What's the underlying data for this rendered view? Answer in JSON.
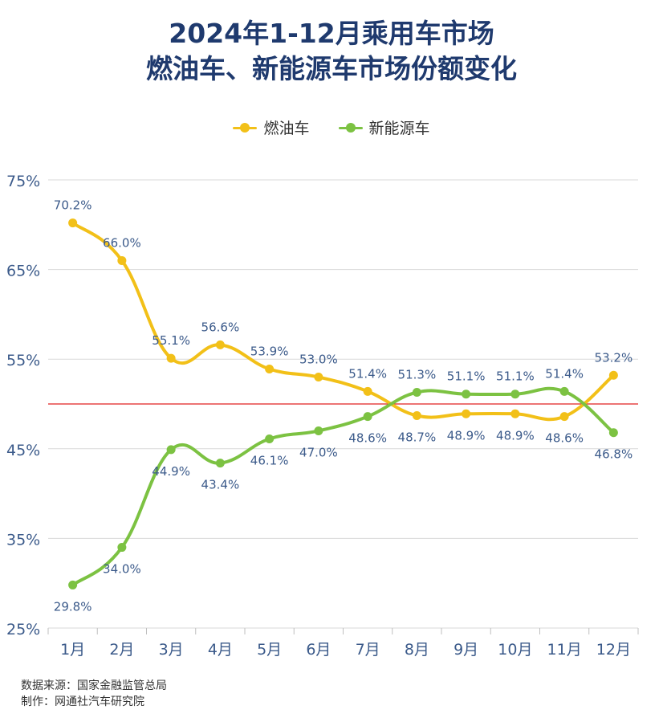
{
  "title_line1": "2024年1-12月乘用车市场",
  "title_line2": "燃油车、新能源车市场份额变化",
  "source_line1": "数据来源：国家金融监管总局",
  "source_line2": "制作：网通社汽车研究院",
  "colors": {
    "fuel": "#f2c018",
    "nev": "#7cc242",
    "reference_line": "#e02020",
    "grid": "#d9d9d9",
    "axis_text": "#3b5a8a",
    "data_label": "#3b5a8a",
    "title": "#1f3a6e"
  },
  "chart_data": {
    "type": "line",
    "title": "2024年1-12月乘用车市场 燃油车、新能源车市场份额变化",
    "categories": [
      "1月",
      "2月",
      "3月",
      "4月",
      "5月",
      "6月",
      "7月",
      "8月",
      "9月",
      "10月",
      "11月",
      "12月"
    ],
    "series": [
      {
        "name": "燃油车",
        "values": [
          70.2,
          66.0,
          55.1,
          56.6,
          53.9,
          53.0,
          51.4,
          48.7,
          48.9,
          48.9,
          48.6,
          53.2
        ],
        "labels": [
          "70.2%",
          "66.0%",
          "55.1%",
          "56.6%",
          "53.9%",
          "53.0%",
          "51.4%",
          "48.7%",
          "48.9%",
          "48.9%",
          "48.6%",
          "53.2%"
        ]
      },
      {
        "name": "新能源车",
        "values": [
          29.8,
          34.0,
          44.9,
          43.4,
          46.1,
          47.0,
          48.6,
          51.3,
          51.1,
          51.1,
          51.4,
          46.8
        ],
        "labels": [
          "29.8%",
          "34.0%",
          "44.9%",
          "43.4%",
          "46.1%",
          "47.0%",
          "48.6%",
          "51.3%",
          "51.1%",
          "51.1%",
          "51.4%",
          "46.8%"
        ]
      }
    ],
    "ylim": [
      25,
      75
    ],
    "yticks": [
      25,
      35,
      45,
      55,
      65,
      75
    ],
    "ytick_labels": [
      "25%",
      "35%",
      "45%",
      "55%",
      "65%",
      "75%"
    ],
    "reference_line": 50,
    "grid": true,
    "legend_position": "top-center",
    "xlabel": "",
    "ylabel": ""
  }
}
